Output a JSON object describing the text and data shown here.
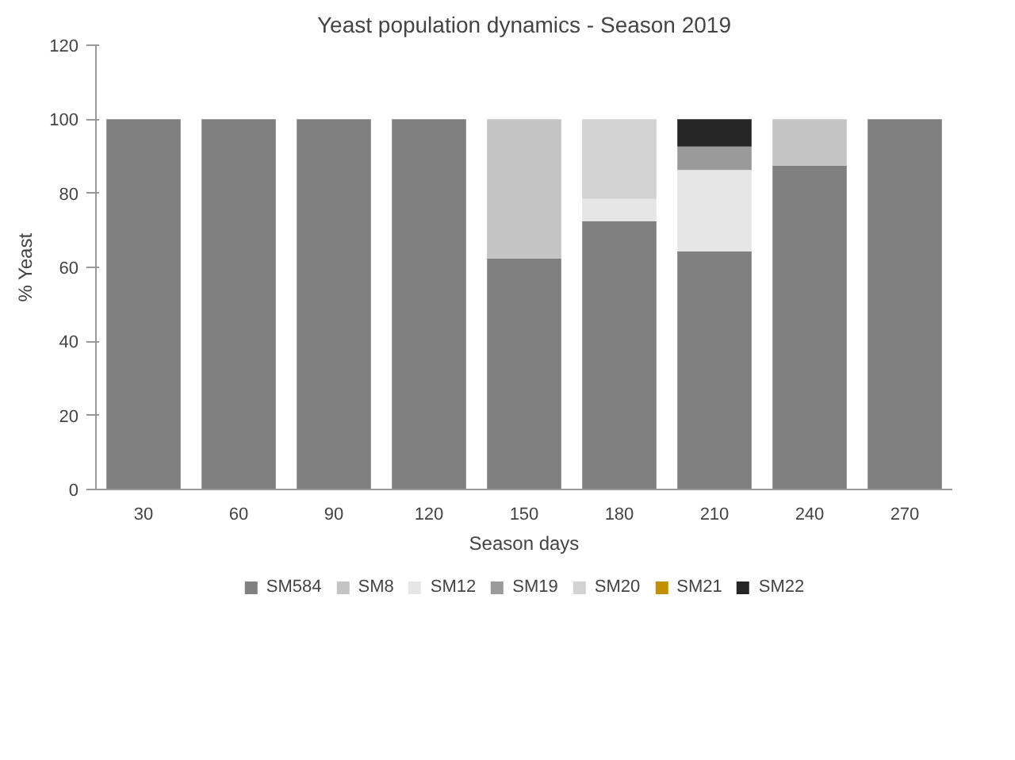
{
  "chart_data": {
    "type": "bar",
    "stacked": true,
    "title": "Yeast population dynamics - Season 2019",
    "xlabel": "Season days",
    "ylabel": "% Yeast",
    "categories": [
      "30",
      "60",
      "90",
      "120",
      "150",
      "180",
      "210",
      "240",
      "270"
    ],
    "ylim": [
      0,
      120
    ],
    "yticks": [
      0,
      20,
      40,
      60,
      80,
      100,
      120
    ],
    "grid": false,
    "legend": "bottom",
    "series": [
      {
        "name": "SM584",
        "color": "#808080",
        "values": [
          100,
          100,
          100,
          100,
          62.4,
          72.5,
          64.3,
          87.5,
          100
        ]
      },
      {
        "name": "SM8",
        "color": "#c4c4c4",
        "values": [
          0,
          0,
          0,
          0,
          37.6,
          0,
          0,
          12.5,
          0
        ]
      },
      {
        "name": "SM12",
        "color": "#e6e6e6",
        "values": [
          0,
          0,
          0,
          0,
          0,
          6,
          22,
          0,
          0
        ]
      },
      {
        "name": "SM19",
        "color": "#9a9a9a",
        "values": [
          0,
          0,
          0,
          0,
          0,
          0,
          6.3,
          0,
          0
        ]
      },
      {
        "name": "SM20",
        "color": "#d2d2d2",
        "values": [
          0,
          0,
          0,
          0,
          0,
          21.5,
          0,
          0,
          0
        ]
      },
      {
        "name": "SM21",
        "color": "#c09000",
        "values": [
          0,
          0,
          0,
          0,
          0,
          0,
          0,
          0,
          0
        ]
      },
      {
        "name": "SM22",
        "color": "#262626",
        "values": [
          0,
          0,
          0,
          0,
          0,
          0,
          7.4,
          0,
          0
        ]
      }
    ]
  }
}
